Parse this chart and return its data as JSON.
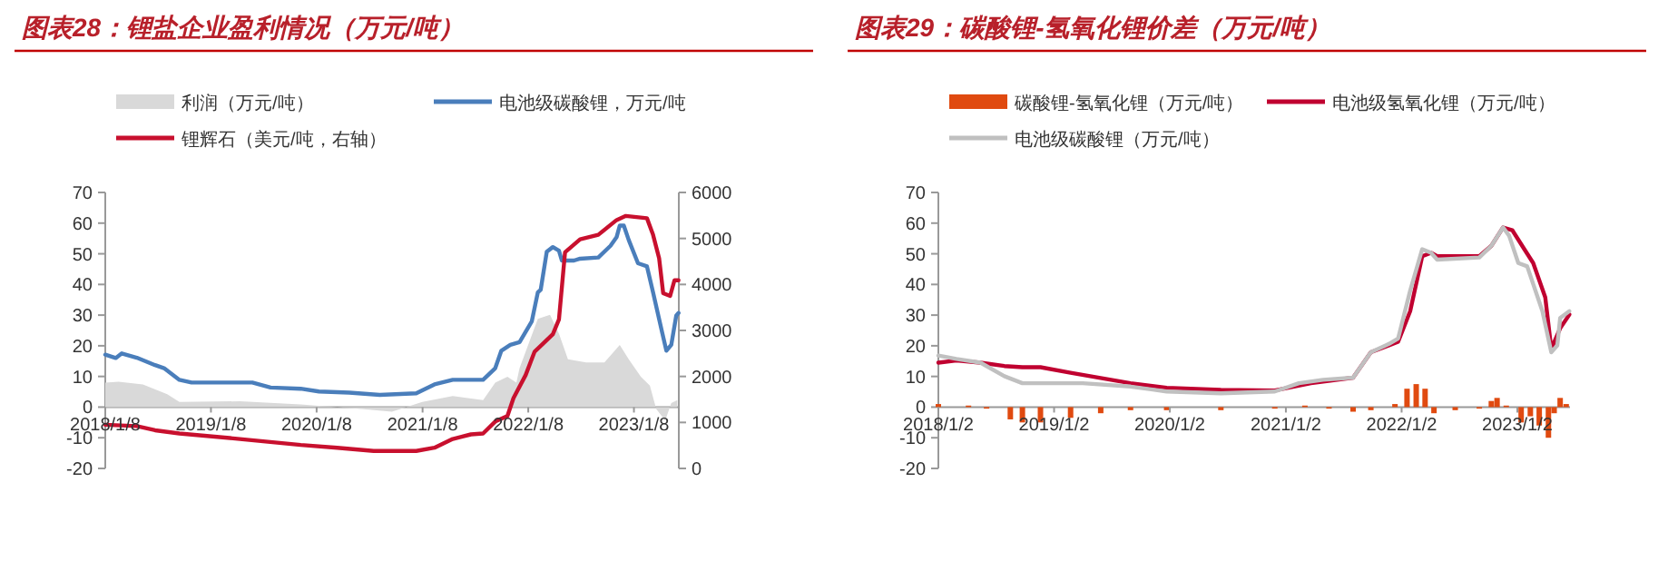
{
  "chart_data": [
    {
      "type": "line",
      "title": "图表28：锂盐企业盈利情况（万元/吨）",
      "legend": "top",
      "xlim": [
        "2018-01-08",
        "2023-06-12"
      ],
      "ylim": [
        -20,
        70
      ],
      "yticks": [
        -20,
        -10,
        0,
        10,
        20,
        30,
        40,
        50,
        60,
        70
      ],
      "y2lim": [
        0,
        6000
      ],
      "y2ticks": [
        0,
        1000,
        2000,
        3000,
        4000,
        5000,
        6000
      ],
      "xticks": [
        {
          "value": "2018-01-08",
          "label": "2018/1/8"
        },
        {
          "value": "2019-01-08",
          "label": "2019/1/8"
        },
        {
          "value": "2020-01-08",
          "label": "2020/1/8"
        },
        {
          "value": "2021-01-08",
          "label": "2021/1/8"
        },
        {
          "value": "2022-01-08",
          "label": "2022/1/8"
        },
        {
          "value": "2023-01-08",
          "label": "2023/1/8"
        }
      ],
      "series": [
        {
          "name": "利润（万元/吨）",
          "type": "area",
          "color": "#d9d9d9",
          "x": [
            "2018-01-08",
            "2018-02-23",
            "2018-05-18",
            "2018-08-10",
            "2018-09-21",
            "2019-04-18",
            "2019-11-14",
            "2020-06-11",
            "2020-09-24",
            "2021-01-07",
            "2021-04-22",
            "2021-08-05",
            "2021-09-16",
            "2021-10-28",
            "2021-11-28",
            "2021-12-09",
            "2022-02-10",
            "2022-03-24",
            "2022-04-24",
            "2022-05-25",
            "2022-07-27",
            "2022-09-28",
            "2022-11-20",
            "2022-12-21",
            "2023-02-01",
            "2023-03-04",
            "2023-03-26",
            "2023-04-26",
            "2023-05-17",
            "2023-06-07"
          ],
          "values": [
            8,
            8.3,
            7.4,
            4.2,
            1.7,
            1.9,
            0.9,
            -0.6,
            -1.5,
            1.7,
            3.6,
            2.3,
            8,
            9.9,
            8,
            12.7,
            28.8,
            30.1,
            24,
            15.6,
            14.6,
            14.6,
            20.3,
            15.6,
            9.9,
            7,
            -0.6,
            -4.4,
            1.3,
            2.3
          ]
        },
        {
          "name": "电池级碳酸锂，万元/吨",
          "color": "#4a7ebb",
          "x": [
            "2018-01-08",
            "2018-02-13",
            "2018-03-06",
            "2018-04-27",
            "2018-06-29",
            "2018-07-30",
            "2018-09-21",
            "2018-11-02",
            "2019-05-31",
            "2019-08-02",
            "2019-11-14",
            "2020-01-16",
            "2020-04-30",
            "2020-08-13",
            "2020-12-17",
            "2021-02-18",
            "2021-04-22",
            "2021-08-05",
            "2021-09-16",
            "2021-10-07",
            "2021-11-07",
            "2021-12-09",
            "2022-01-20",
            "2022-02-10",
            "2022-02-20",
            "2022-03-13",
            "2022-04-03",
            "2022-04-24",
            "2022-05-04",
            "2022-06-15",
            "2022-07-06",
            "2022-09-07",
            "2022-10-19",
            "2022-11-09",
            "2022-11-20",
            "2022-12-04",
            "2022-12-21",
            "2023-01-22",
            "2023-02-22",
            "2023-03-15",
            "2023-04-16",
            "2023-04-30",
            "2023-05-17",
            "2023-06-03",
            "2023-06-11"
          ],
          "values": [
            17.1,
            16,
            17.5,
            16.1,
            13.7,
            12.7,
            8.9,
            8,
            8,
            6.4,
            6,
            5.1,
            4.7,
            4,
            4.5,
            7.4,
            8.9,
            8.9,
            12.7,
            18.4,
            20.3,
            21.2,
            27.9,
            37.4,
            38.3,
            50.7,
            52.2,
            51,
            47.8,
            47.8,
            48.4,
            48.8,
            52.6,
            55.4,
            59.2,
            59.2,
            54.5,
            46.9,
            45.9,
            37.4,
            24.1,
            18.4,
            20.3,
            29.8,
            30.7
          ]
        },
        {
          "name": "锂辉石（美元/吨，右轴）",
          "axis": "y2",
          "color": "#c8102e",
          "x": [
            "2018-01-08",
            "2018-04-27",
            "2018-06-29",
            "2018-09-21",
            "2019-04-18",
            "2019-11-14",
            "2020-03-19",
            "2020-07-23",
            "2020-12-17",
            "2021-02-18",
            "2021-04-22",
            "2021-06-24",
            "2021-08-05",
            "2021-09-16",
            "2021-10-28",
            "2021-11-18",
            "2021-12-30",
            "2022-01-30",
            "2022-03-03",
            "2022-04-03",
            "2022-04-24",
            "2022-05-15",
            "2022-07-06",
            "2022-09-07",
            "2022-11-09",
            "2022-12-11",
            "2023-02-22",
            "2023-03-15",
            "2023-04-05",
            "2023-04-19",
            "2023-05-13",
            "2023-05-28",
            "2023-06-11"
          ],
          "values": [
            950,
            920,
            830,
            760,
            640,
            510,
            450,
            380,
            380,
            450,
            640,
            740,
            760,
            1020,
            1140,
            1530,
            2030,
            2540,
            2730,
            2920,
            3240,
            4700,
            4980,
            5080,
            5400,
            5490,
            5440,
            5080,
            4570,
            3810,
            3750,
            4090,
            4090
          ]
        }
      ]
    },
    {
      "type": "line",
      "title": "图表29：碳酸锂-氢氧化锂价差（万元/吨）",
      "legend": "top",
      "xlim": [
        "2018-01-02",
        "2023-06-17"
      ],
      "ylim": [
        -20,
        70
      ],
      "yticks": [
        -20,
        -10,
        0,
        10,
        20,
        30,
        40,
        50,
        60,
        70
      ],
      "xticks": [
        {
          "value": "2018-01-02",
          "label": "2018/1/2"
        },
        {
          "value": "2019-01-02",
          "label": "2019/1/2"
        },
        {
          "value": "2020-01-02",
          "label": "2020/1/2"
        },
        {
          "value": "2021-01-02",
          "label": "2021/1/2"
        },
        {
          "value": "2022-01-02",
          "label": "2022/1/2"
        },
        {
          "value": "2023-01-02",
          "label": "2023/1/2"
        }
      ],
      "series": [
        {
          "name": "碳酸锂-氢氧化锂（万元/吨）",
          "type": "bar",
          "color": "#e04a10",
          "x": [
            "2018-01-02",
            "2018-04-07",
            "2018-06-03",
            "2018-08-17",
            "2018-09-24",
            "2018-11-20",
            "2019-02-23",
            "2019-05-29",
            "2019-08-31",
            "2019-12-23",
            "2020-06-11",
            "2020-11-28",
            "2021-03-03",
            "2021-05-18",
            "2021-08-02",
            "2021-09-27",
            "2021-12-12",
            "2022-01-19",
            "2022-02-17",
            "2022-03-17",
            "2022-04-14",
            "2022-06-20",
            "2022-09-04",
            "2022-10-12",
            "2022-10-30",
            "2022-11-28",
            "2023-01-14",
            "2023-02-12",
            "2023-03-12",
            "2023-04-10",
            "2023-04-28",
            "2023-05-17",
            "2023-06-05"
          ],
          "values": [
            1,
            0.5,
            -0.5,
            -4,
            -5,
            -5,
            -3.5,
            -2,
            -1,
            -1,
            -1,
            -0.5,
            0.5,
            -0.5,
            -1.5,
            -1,
            1,
            6,
            7.5,
            6,
            -2,
            -1,
            -0.5,
            2,
            3,
            0.5,
            -5,
            -3,
            -6,
            -10,
            -2,
            3,
            1
          ]
        },
        {
          "name": "电池级氢氧化锂（万元/吨）",
          "color": "#c00030",
          "x": [
            "2018-01-02",
            "2018-02-28",
            "2018-05-15",
            "2018-07-29",
            "2018-09-24",
            "2018-11-20",
            "2019-02-23",
            "2019-08-31",
            "2019-12-23",
            "2020-06-11",
            "2020-11-28",
            "2021-03-22",
            "2021-08-02",
            "2021-09-27",
            "2021-11-23",
            "2021-12-22",
            "2022-01-29",
            "2022-03-08",
            "2022-04-05",
            "2022-04-24",
            "2022-09-04",
            "2022-10-12",
            "2022-11-18",
            "2022-12-17",
            "2023-01-24",
            "2023-02-21",
            "2023-03-31",
            "2023-04-19",
            "2023-05-17",
            "2023-06-15"
          ],
          "values": [
            14.5,
            15.2,
            14.5,
            13.4,
            13,
            13,
            11.2,
            7.8,
            6.3,
            5.6,
            5.4,
            7.8,
            9.6,
            17.9,
            20.1,
            21.3,
            31.3,
            49.2,
            50.3,
            49.2,
            49.2,
            52.6,
            58.6,
            57.7,
            51.5,
            47,
            35.8,
            19,
            25.7,
            30.2
          ]
        },
        {
          "name": "电池级碳酸锂（万元/吨）",
          "color": "#c0c0c0",
          "x": [
            "2018-01-02",
            "2018-02-28",
            "2018-05-15",
            "2018-07-29",
            "2018-09-24",
            "2019-04-02",
            "2019-08-31",
            "2019-12-23",
            "2020-06-11",
            "2020-11-28",
            "2021-02-12",
            "2021-04-29",
            "2021-08-02",
            "2021-09-27",
            "2021-11-23",
            "2021-12-22",
            "2022-01-29",
            "2022-03-08",
            "2022-04-05",
            "2022-04-24",
            "2022-09-04",
            "2022-10-12",
            "2022-11-18",
            "2022-12-07",
            "2023-01-05",
            "2023-02-02",
            "2023-03-22",
            "2023-04-19",
            "2023-05-08",
            "2023-05-17",
            "2023-06-15"
          ],
          "values": [
            16.8,
            15.7,
            14.5,
            10.1,
            7.8,
            7.8,
            6.7,
            5.1,
            4.5,
            5.1,
            7.8,
            8.9,
            9.6,
            17.9,
            20.6,
            22.4,
            38,
            51.5,
            50.3,
            48.1,
            48.8,
            52.6,
            58.6,
            55.9,
            47,
            45.9,
            31.3,
            17.9,
            20.1,
            29.1,
            31.3
          ]
        }
      ]
    }
  ]
}
